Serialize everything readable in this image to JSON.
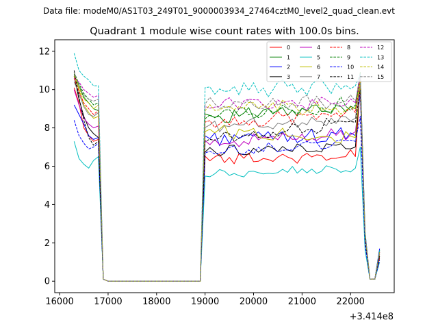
{
  "chart_data": {
    "type": "line",
    "suptitle": "Data file: modeM0/AS1T03_249T01_9000003934_27464cztM0_level2_quad_clean.evt",
    "title": "Quadrant 1 module wise count rates with 100.0s bins.",
    "xlabel": "",
    "ylabel": "",
    "x_offset_label": "+3.414e8",
    "xlim": [
      15900,
      22900
    ],
    "ylim": [
      -0.6,
      12.6
    ],
    "xticks": [
      16000,
      17000,
      18000,
      19000,
      20000,
      21000,
      22000
    ],
    "xtick_labels": [
      "16000",
      "17000",
      "18000",
      "19000",
      "20000",
      "21000",
      "22000"
    ],
    "yticks": [
      0,
      2,
      4,
      6,
      8,
      10,
      12
    ],
    "ytick_labels": [
      "0",
      "2",
      "4",
      "6",
      "8",
      "10",
      "12"
    ],
    "grid": false,
    "legend_position": "top-right",
    "legend_columns": 4,
    "segments": {
      "gap_start": 16900,
      "gap_end": 18900,
      "tail_times": [
        22300,
        22400,
        22500,
        22600
      ]
    },
    "series": [
      {
        "name": "0",
        "color": "#ff0000",
        "dash": "solid",
        "start_values": [
          10.1,
          9.3,
          8.0,
          7.6,
          7.3,
          7.4
        ],
        "plateau_base": 6.4,
        "plateau_amp": 0.25,
        "end_level": 6.5,
        "peak": 10.2,
        "tail_values": [
          2.3,
          0.1,
          0.1,
          1.2
        ]
      },
      {
        "name": "1",
        "color": "#008000",
        "dash": "solid",
        "start_values": [
          10.8,
          10.2,
          9.6,
          9.3,
          9.0,
          8.9
        ],
        "plateau_base": 8.6,
        "plateau_amp": 0.3,
        "end_level": 9.0,
        "peak": 10.8,
        "tail_values": [
          2.4,
          0.1,
          0.1,
          1.6
        ]
      },
      {
        "name": "2",
        "color": "#0000ff",
        "dash": "solid",
        "start_values": [
          9.2,
          8.7,
          8.2,
          7.6,
          7.4,
          7.5
        ],
        "plateau_base": 7.5,
        "plateau_amp": 0.35,
        "end_level": 7.6,
        "peak": 9.8,
        "tail_values": [
          2.2,
          0.1,
          0.1,
          1.7
        ]
      },
      {
        "name": "3",
        "color": "#000000",
        "dash": "solid",
        "start_values": [
          10.7,
          9.5,
          8.6,
          8.0,
          7.7,
          7.5
        ],
        "plateau_base": 6.8,
        "plateau_amp": 0.25,
        "end_level": 7.0,
        "peak": 10.3,
        "tail_values": [
          2.3,
          0.1,
          0.1,
          1.3
        ]
      },
      {
        "name": "4",
        "color": "#bf00bf",
        "dash": "solid",
        "start_values": [
          10.0,
          9.2,
          8.5,
          8.2,
          8.0,
          8.1
        ],
        "plateau_base": 7.2,
        "plateau_amp": 0.3,
        "end_level": 7.8,
        "peak": 10.0,
        "tail_values": [
          2.2,
          0.1,
          0.1,
          1.4
        ]
      },
      {
        "name": "5",
        "color": "#00bfbf",
        "dash": "solid",
        "start_values": [
          7.3,
          6.4,
          6.1,
          5.9,
          6.3,
          6.5
        ],
        "plateau_base": 5.5,
        "plateau_amp": 0.2,
        "end_level": 5.9,
        "peak": 7.0,
        "tail_values": [
          1.6,
          0.1,
          0.1,
          1.0
        ]
      },
      {
        "name": "6",
        "color": "#bfbf00",
        "dash": "solid",
        "start_values": [
          10.9,
          10.0,
          9.2,
          8.8,
          8.5,
          8.6
        ],
        "plateau_base": 7.9,
        "plateau_amp": 0.3,
        "end_level": 7.5,
        "peak": 10.4,
        "tail_values": [
          2.3,
          0.1,
          0.1,
          1.4
        ]
      },
      {
        "name": "7",
        "color": "#808080",
        "dash": "solid",
        "start_values": [
          10.4,
          9.8,
          9.1,
          8.7,
          8.6,
          8.8
        ],
        "plateau_base": 8.0,
        "plateau_amp": 0.3,
        "end_level": 8.5,
        "peak": 10.4,
        "tail_values": [
          2.3,
          0.1,
          0.1,
          1.5
        ]
      },
      {
        "name": "8",
        "color": "#ff0000",
        "dash": "dashed",
        "start_values": [
          10.6,
          9.9,
          9.3,
          9.0,
          8.7,
          8.9
        ],
        "plateau_base": 8.2,
        "plateau_amp": 0.3,
        "end_level": 8.8,
        "peak": 10.5,
        "tail_values": [
          2.4,
          0.1,
          0.1,
          1.5
        ]
      },
      {
        "name": "9",
        "color": "#008000",
        "dash": "dashed",
        "start_values": [
          10.9,
          10.3,
          9.8,
          9.5,
          9.2,
          9.3
        ],
        "plateau_base": 8.7,
        "plateau_amp": 0.35,
        "end_level": 9.2,
        "peak": 10.9,
        "tail_values": [
          2.5,
          0.1,
          0.1,
          1.6
        ]
      },
      {
        "name": "10",
        "color": "#0000ff",
        "dash": "dashed",
        "start_values": [
          8.4,
          7.6,
          7.2,
          6.9,
          7.0,
          7.2
        ],
        "plateau_base": 6.6,
        "plateau_amp": 0.25,
        "end_level": 7.3,
        "peak": 8.6,
        "tail_values": [
          1.9,
          0.1,
          0.1,
          1.1
        ]
      },
      {
        "name": "11",
        "color": "#000000",
        "dash": "dashed",
        "start_values": [
          11.0,
          9.6,
          8.4,
          7.5,
          7.1,
          7.3
        ],
        "plateau_base": 7.3,
        "plateau_amp": 0.3,
        "end_level": 8.3,
        "peak": 10.0,
        "tail_values": [
          2.2,
          0.1,
          0.1,
          1.3
        ]
      },
      {
        "name": "12",
        "color": "#bf00bf",
        "dash": "dashed",
        "start_values": [
          10.6,
          10.4,
          10.0,
          9.8,
          9.6,
          9.7
        ],
        "plateau_base": 9.3,
        "plateau_amp": 0.3,
        "end_level": 9.3,
        "peak": 10.8,
        "tail_values": [
          2.5,
          0.1,
          0.1,
          1.5
        ]
      },
      {
        "name": "13",
        "color": "#00bfbf",
        "dash": "dashed",
        "start_values": [
          11.9,
          11.0,
          10.7,
          10.5,
          10.2,
          10.2
        ],
        "plateau_base": 9.95,
        "plateau_amp": 0.35,
        "end_level": 10.2,
        "peak": 10.8,
        "tail_values": [
          2.6,
          0.1,
          0.1,
          1.6
        ]
      },
      {
        "name": "14",
        "color": "#bfbf00",
        "dash": "dashed",
        "start_values": [
          10.7,
          10.1,
          9.5,
          9.3,
          9.0,
          9.2
        ],
        "plateau_base": 9.0,
        "plateau_amp": 0.35,
        "end_level": 9.0,
        "peak": 10.4,
        "tail_values": [
          2.4,
          0.1,
          0.1,
          1.5
        ]
      },
      {
        "name": "15",
        "color": "#808080",
        "dash": "dashed",
        "start_values": [
          10.9,
          10.2,
          9.7,
          9.5,
          9.4,
          9.5
        ],
        "plateau_base": 9.2,
        "plateau_amp": 0.3,
        "end_level": 9.4,
        "peak": 10.6,
        "tail_values": [
          2.5,
          0.1,
          0.1,
          1.5
        ]
      }
    ]
  }
}
